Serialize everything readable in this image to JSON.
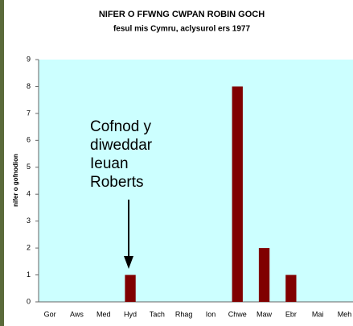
{
  "chart_data": {
    "type": "bar",
    "title": "NIFER O FFWNG CWPAN ROBIN GOCH",
    "subtitle": "fesul mis Cymru, aclysurol ers 1977",
    "y_label": "nifer o gofnodion",
    "categories": [
      "Gor",
      "Aws",
      "Med",
      "Hyd",
      "Tach",
      "Rhag",
      "Ion",
      "Chwe",
      "Maw",
      "Ebr",
      "Mai",
      "Meh"
    ],
    "values": [
      0,
      0,
      0,
      1,
      0,
      0,
      0,
      8,
      2,
      1,
      0,
      0
    ],
    "color": "#800000",
    "ylim": [
      0,
      9
    ],
    "yticks": [
      0,
      1,
      2,
      3,
      4,
      5,
      6,
      7,
      8,
      9
    ],
    "grid": false,
    "annotation": [
      "Cofnod y",
      "diweddar",
      "Ieuan",
      "Roberts"
    ]
  }
}
